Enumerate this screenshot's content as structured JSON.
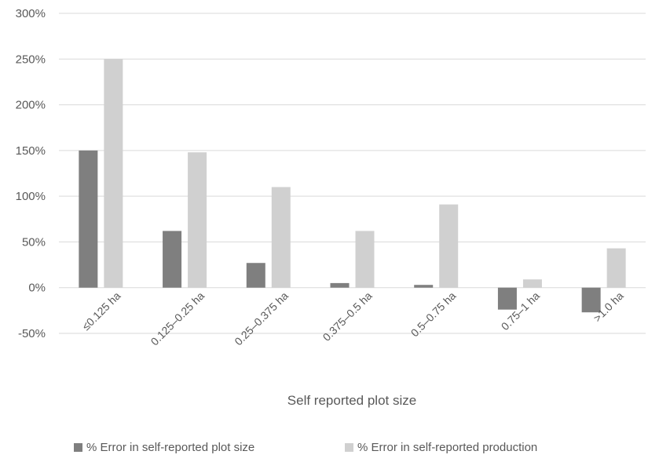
{
  "chart_data": {
    "type": "bar",
    "title": "",
    "xlabel": "Self reported plot size",
    "ylabel": "",
    "categories": [
      "≤0.125 ha",
      "0.125–0.25 ha",
      "0.25–0.375 ha",
      "0.375–0.5 ha",
      "0.5–0.75 ha",
      "0.75–1 ha",
      ">1.0 ha"
    ],
    "series": [
      {
        "name": "% Error in self-reported plot size",
        "values": [
          150,
          62,
          27,
          5,
          3,
          -24,
          -27
        ],
        "color": "#7f7f7f"
      },
      {
        "name": "% Error in self-reported production",
        "values": [
          250,
          148,
          110,
          62,
          91,
          9,
          43
        ],
        "color": "#d0d0d0"
      }
    ],
    "ylim": [
      -50,
      300
    ],
    "yticks": [
      -50,
      0,
      50,
      100,
      150,
      200,
      250,
      300
    ],
    "ytick_labels": [
      "-50%",
      "0%",
      "50%",
      "100%",
      "150%",
      "200%",
      "250%",
      "300%"
    ],
    "grid": true,
    "legend_position": "bottom"
  }
}
